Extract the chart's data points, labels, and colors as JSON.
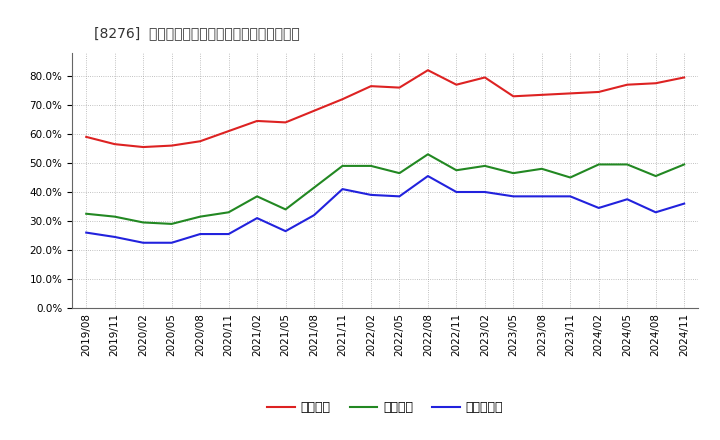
{
  "title": "[8276]  流動比率、当座比率、現顄金比率の推移",
  "x_labels": [
    "2019/08",
    "2019/11",
    "2020/02",
    "2020/05",
    "2020/08",
    "2020/11",
    "2021/02",
    "2021/05",
    "2021/08",
    "2021/11",
    "2022/02",
    "2022/05",
    "2022/08",
    "2022/11",
    "2023/02",
    "2023/05",
    "2023/08",
    "2023/11",
    "2024/02",
    "2024/05",
    "2024/08",
    "2024/11"
  ],
  "ryudo": [
    59.0,
    56.5,
    55.5,
    56.0,
    57.5,
    61.0,
    64.5,
    64.0,
    68.0,
    72.0,
    76.5,
    76.0,
    82.0,
    77.0,
    79.5,
    73.0,
    73.5,
    74.0,
    74.5,
    77.0,
    77.5,
    79.5
  ],
  "toza": [
    32.5,
    31.5,
    29.5,
    29.0,
    31.5,
    33.0,
    38.5,
    34.0,
    41.5,
    49.0,
    49.0,
    46.5,
    53.0,
    47.5,
    49.0,
    46.5,
    48.0,
    45.0,
    49.5,
    49.5,
    45.5,
    49.5
  ],
  "genkin": [
    26.0,
    24.5,
    22.5,
    22.5,
    25.5,
    25.5,
    31.0,
    26.5,
    32.0,
    41.0,
    39.0,
    38.5,
    45.5,
    40.0,
    40.0,
    38.5,
    38.5,
    38.5,
    34.5,
    37.5,
    33.0,
    36.0
  ],
  "ryudo_color": "#dd2222",
  "toza_color": "#228822",
  "genkin_color": "#2222dd",
  "bg_color": "#ffffff",
  "grid_color": "#999999",
  "ylim": [
    0,
    88
  ],
  "yticks": [
    0,
    10,
    20,
    30,
    40,
    50,
    60,
    70,
    80
  ],
  "legend_labels": [
    "流動比率",
    "当座比率",
    "現顄金比率"
  ],
  "title_fontsize": 10,
  "axis_fontsize": 7.5,
  "legend_fontsize": 9
}
